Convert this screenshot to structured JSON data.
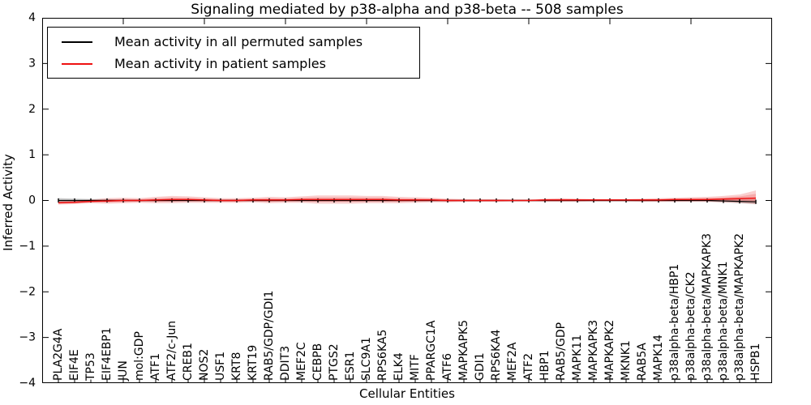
{
  "chart_data": {
    "type": "line",
    "title": "Signaling mediated by p38-alpha and p38-beta -- 508 samples",
    "xlabel": "Cellular Entities",
    "ylabel": "Inferred Activity",
    "xlim": [
      0,
      45
    ],
    "ylim": [
      -4,
      4
    ],
    "yticks": [
      -4,
      -3,
      -2,
      -1,
      0,
      1,
      2,
      3,
      4
    ],
    "ytick_labels": [
      "−4",
      "−3",
      "−2",
      "−1",
      "0",
      "1",
      "2",
      "3",
      "4"
    ],
    "xticks_major": [
      5,
      10,
      15,
      20,
      25,
      30,
      35,
      40
    ],
    "grid": false,
    "legend_position": "upper left",
    "categories": [
      "PLA2G4A",
      "EIF4E",
      "TP53",
      "EIF4EBP1",
      "JUN",
      "mol:GDP",
      "ATF1",
      "ATF2/c-Jun",
      "CREB1",
      "NOS2",
      "USF1",
      "KRT8",
      "KRT19",
      "RAB5/GDP/GDI1",
      "DDIT3",
      "MEF2C",
      "CEBPB",
      "PTGS2",
      "ESR1",
      "SLC9A1",
      "RPS6KA5",
      "ELK4",
      "MITF",
      "PPARGC1A",
      "ATF6",
      "MAPKAPK5",
      "GDI1",
      "RPS6KA4",
      "MEF2A",
      "ATF2",
      "HBP1",
      "RAB5/GDP",
      "MAPK11",
      "MAPKAPK3",
      "MAPKAPK2",
      "MKNK1",
      "RAB5A",
      "MAPK14",
      "p38alpha-beta/HBP1",
      "p38alpha-beta/CK2",
      "p38alpha-beta/MAPKAPK3",
      "p38alpha-beta/MNK1",
      "p38alpha-beta/MAPKAPK2",
      "HSPB1"
    ],
    "series": [
      {
        "name": "Mean activity in all permuted samples",
        "color": "#000000",
        "marker": "|",
        "line_width": 1.2,
        "band_color": "rgba(110,110,110,0.35)",
        "values": [
          0,
          0,
          0,
          0,
          0,
          0,
          0,
          0,
          0,
          0,
          0,
          0,
          0,
          0,
          0,
          0,
          0,
          0,
          0,
          0,
          0,
          0,
          0,
          0,
          0,
          0,
          0,
          0,
          0,
          0,
          0,
          0,
          0,
          0,
          0,
          0,
          0,
          0,
          0,
          0,
          0,
          -0.01,
          -0.02,
          -0.03
        ],
        "band_upper": [
          0.05,
          0.04,
          0.03,
          0.03,
          0.02,
          0.02,
          0.02,
          0.02,
          0.02,
          0.02,
          0.02,
          0.02,
          0.02,
          0.02,
          0.02,
          0.02,
          0.02,
          0.02,
          0.02,
          0.02,
          0.02,
          0.02,
          0.02,
          0.02,
          0.02,
          0.02,
          0.02,
          0.02,
          0.02,
          0.02,
          0.02,
          0.02,
          0.02,
          0.02,
          0.02,
          0.02,
          0.02,
          0.02,
          0.02,
          0.02,
          0.02,
          0.02,
          0.02,
          0.02
        ],
        "band_lower": [
          -0.05,
          -0.04,
          -0.03,
          -0.03,
          -0.02,
          -0.02,
          -0.02,
          -0.02,
          -0.02,
          -0.02,
          -0.02,
          -0.02,
          -0.02,
          -0.02,
          -0.02,
          -0.02,
          -0.02,
          -0.02,
          -0.02,
          -0.02,
          -0.02,
          -0.02,
          -0.02,
          -0.02,
          -0.02,
          -0.02,
          -0.02,
          -0.02,
          -0.02,
          -0.02,
          -0.02,
          -0.02,
          -0.02,
          -0.02,
          -0.02,
          -0.02,
          -0.02,
          -0.02,
          -0.02,
          -0.02,
          -0.02,
          -0.04,
          -0.06,
          -0.08
        ]
      },
      {
        "name": "Mean activity in patient samples",
        "color": "#ee1111",
        "marker": null,
        "line_width": 1.5,
        "band_color": "rgba(230,35,35,0.22)",
        "values": [
          -0.05,
          -0.04,
          -0.02,
          -0.01,
          0,
          0,
          0.01,
          0.02,
          0.02,
          0.01,
          0,
          0,
          0.01,
          0.01,
          0.01,
          0.02,
          0.02,
          0.02,
          0.02,
          0.02,
          0.02,
          0.01,
          0.01,
          0.01,
          0,
          0,
          0,
          0,
          0,
          0,
          0.01,
          0.01,
          0.01,
          0.01,
          0.01,
          0.01,
          0.01,
          0.01,
          0.02,
          0.02,
          0.02,
          0.03,
          0.04,
          0.05
        ],
        "band_upper": [
          -0.01,
          0,
          0.02,
          0.05,
          0.06,
          0.05,
          0.08,
          0.1,
          0.09,
          0.07,
          0.05,
          0.05,
          0.06,
          0.08,
          0.07,
          0.09,
          0.11,
          0.11,
          0.11,
          0.1,
          0.1,
          0.08,
          0.07,
          0.06,
          0.04,
          0.03,
          0.03,
          0.03,
          0.02,
          0.02,
          0.04,
          0.05,
          0.04,
          0.03,
          0.03,
          0.03,
          0.04,
          0.05,
          0.06,
          0.07,
          0.08,
          0.1,
          0.13,
          0.22
        ],
        "band_lower": [
          -0.09,
          -0.08,
          -0.06,
          -0.07,
          -0.06,
          -0.05,
          -0.06,
          -0.06,
          -0.05,
          -0.05,
          -0.05,
          -0.05,
          -0.04,
          -0.06,
          -0.05,
          -0.05,
          -0.07,
          -0.07,
          -0.07,
          -0.06,
          -0.06,
          -0.06,
          -0.05,
          -0.04,
          -0.04,
          -0.03,
          -0.03,
          -0.03,
          -0.02,
          -0.02,
          -0.03,
          -0.03,
          -0.03,
          -0.02,
          -0.02,
          -0.02,
          -0.03,
          -0.03,
          -0.03,
          -0.03,
          -0.03,
          -0.04,
          -0.05,
          -0.08
        ]
      }
    ]
  },
  "legend": {
    "entries": [
      {
        "label": "Mean activity in all permuted samples",
        "color": "#000000"
      },
      {
        "label": "Mean activity in patient samples",
        "color": "#ee1111"
      }
    ]
  },
  "colors": {
    "frame": "#000000",
    "background": "#ffffff"
  }
}
